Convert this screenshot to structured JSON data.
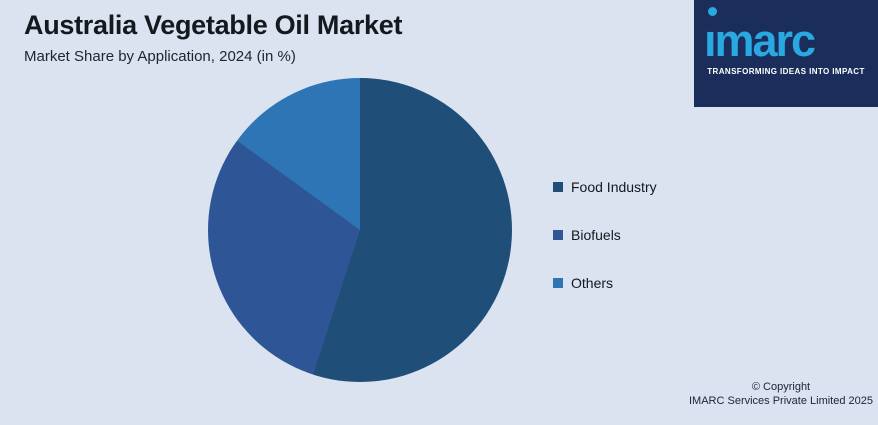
{
  "header": {
    "title": "Australia Vegetable Oil Market",
    "subtitle": "Market Share by Application, 2024 (in %)"
  },
  "chart_data": {
    "type": "pie",
    "title": "Australia Vegetable Oil Market",
    "subtitle": "Market Share by Application, 2024 (in %)",
    "unit": "%",
    "start_angle_deg": 0,
    "direction": "clockwise",
    "legend_position": "right",
    "slices": [
      {
        "label": "Food Industry",
        "value": 55,
        "color": "#1f4e79"
      },
      {
        "label": "Biofuels",
        "value": 30,
        "color": "#2e5596"
      },
      {
        "label": "Others",
        "value": 15,
        "color": "#2e75b6"
      }
    ]
  },
  "branding": {
    "logo_text": "imarc",
    "tagline": "TRANSFORMING IDEAS INTO IMPACT",
    "panel_color": "#1b2d5a",
    "logo_color": "#29a9e1"
  },
  "footer": {
    "copyright_line1": "© Copyright",
    "copyright_line2": "IMARC Services Private Limited 2025"
  },
  "colors": {
    "background": "#dbe2f0",
    "title_text": "#14181f",
    "body_text": "#1e2430"
  }
}
